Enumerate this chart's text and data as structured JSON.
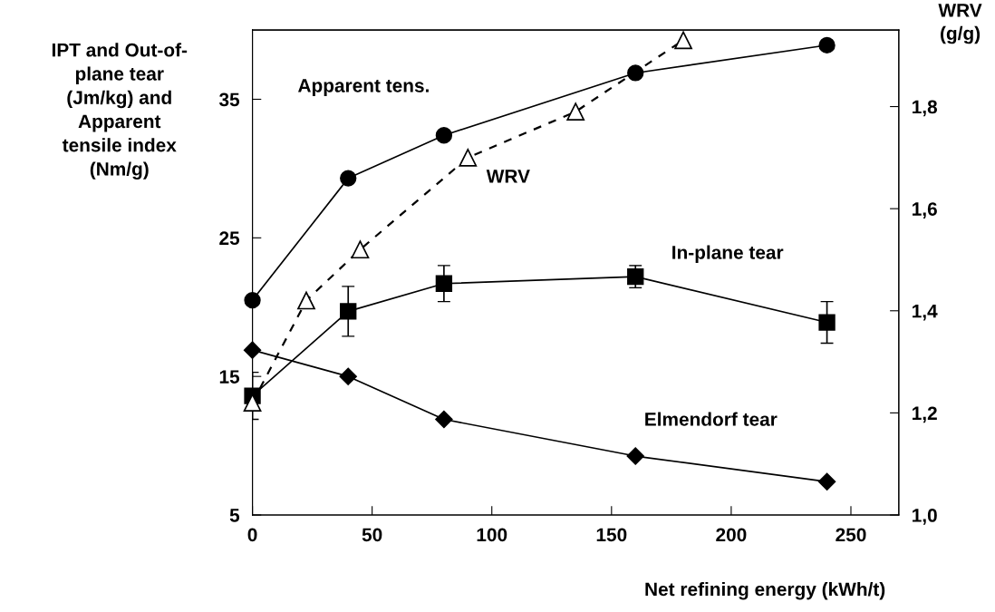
{
  "chart_data": {
    "type": "line",
    "xlabel": "Net refining energy (kWh/t)",
    "ylabel": "IPT and Out-of-\nplane tear\n(Jm/kg) and\nApparent\ntensile index\n(Nm/g)",
    "y2label": "WRV\n(g/g)",
    "xlim": [
      0,
      270
    ],
    "xticks": [
      0,
      50,
      100,
      150,
      200,
      250
    ],
    "ylim": [
      5,
      40
    ],
    "yticks": [
      5,
      15,
      25,
      35
    ],
    "y2lim": [
      1.0,
      1.95
    ],
    "y2ticks": [
      {
        "value": 1.0,
        "label": "1,0"
      },
      {
        "value": 1.2,
        "label": "1,2"
      },
      {
        "value": 1.4,
        "label": "1,4"
      },
      {
        "value": 1.6,
        "label": "1,6"
      },
      {
        "value": 1.8,
        "label": "1,8"
      }
    ],
    "grid": false,
    "legend": false,
    "series": [
      {
        "name": "Apparent tens.",
        "color": "#000000",
        "marker": "circle",
        "line_style": "solid",
        "x": [
          0,
          40,
          80,
          160,
          240
        ],
        "values": [
          20.5,
          29.3,
          32.4,
          36.9,
          38.9
        ]
      },
      {
        "name": "WRV",
        "color": "#000000",
        "marker": "triangle",
        "line_style": "dashed",
        "axis": "y2",
        "x": [
          0,
          22.5,
          45,
          90,
          135,
          180
        ],
        "values": [
          1.22,
          1.42,
          1.52,
          1.7,
          1.79,
          1.93
        ]
      },
      {
        "name": "In-plane tear",
        "color": "#000000",
        "marker": "square",
        "line_style": "solid",
        "x": [
          0,
          40,
          80,
          160,
          240
        ],
        "values": [
          13.6,
          19.7,
          21.7,
          22.2,
          18.9
        ],
        "errors": [
          1.7,
          1.8,
          1.3,
          0.8,
          1.5
        ]
      },
      {
        "name": "Elmendorf tear",
        "color": "#000000",
        "marker": "diamond",
        "line_style": "solid",
        "x": [
          0,
          40,
          80,
          160,
          240
        ],
        "values": [
          16.9,
          15.0,
          11.9,
          9.25,
          7.4
        ]
      }
    ]
  }
}
